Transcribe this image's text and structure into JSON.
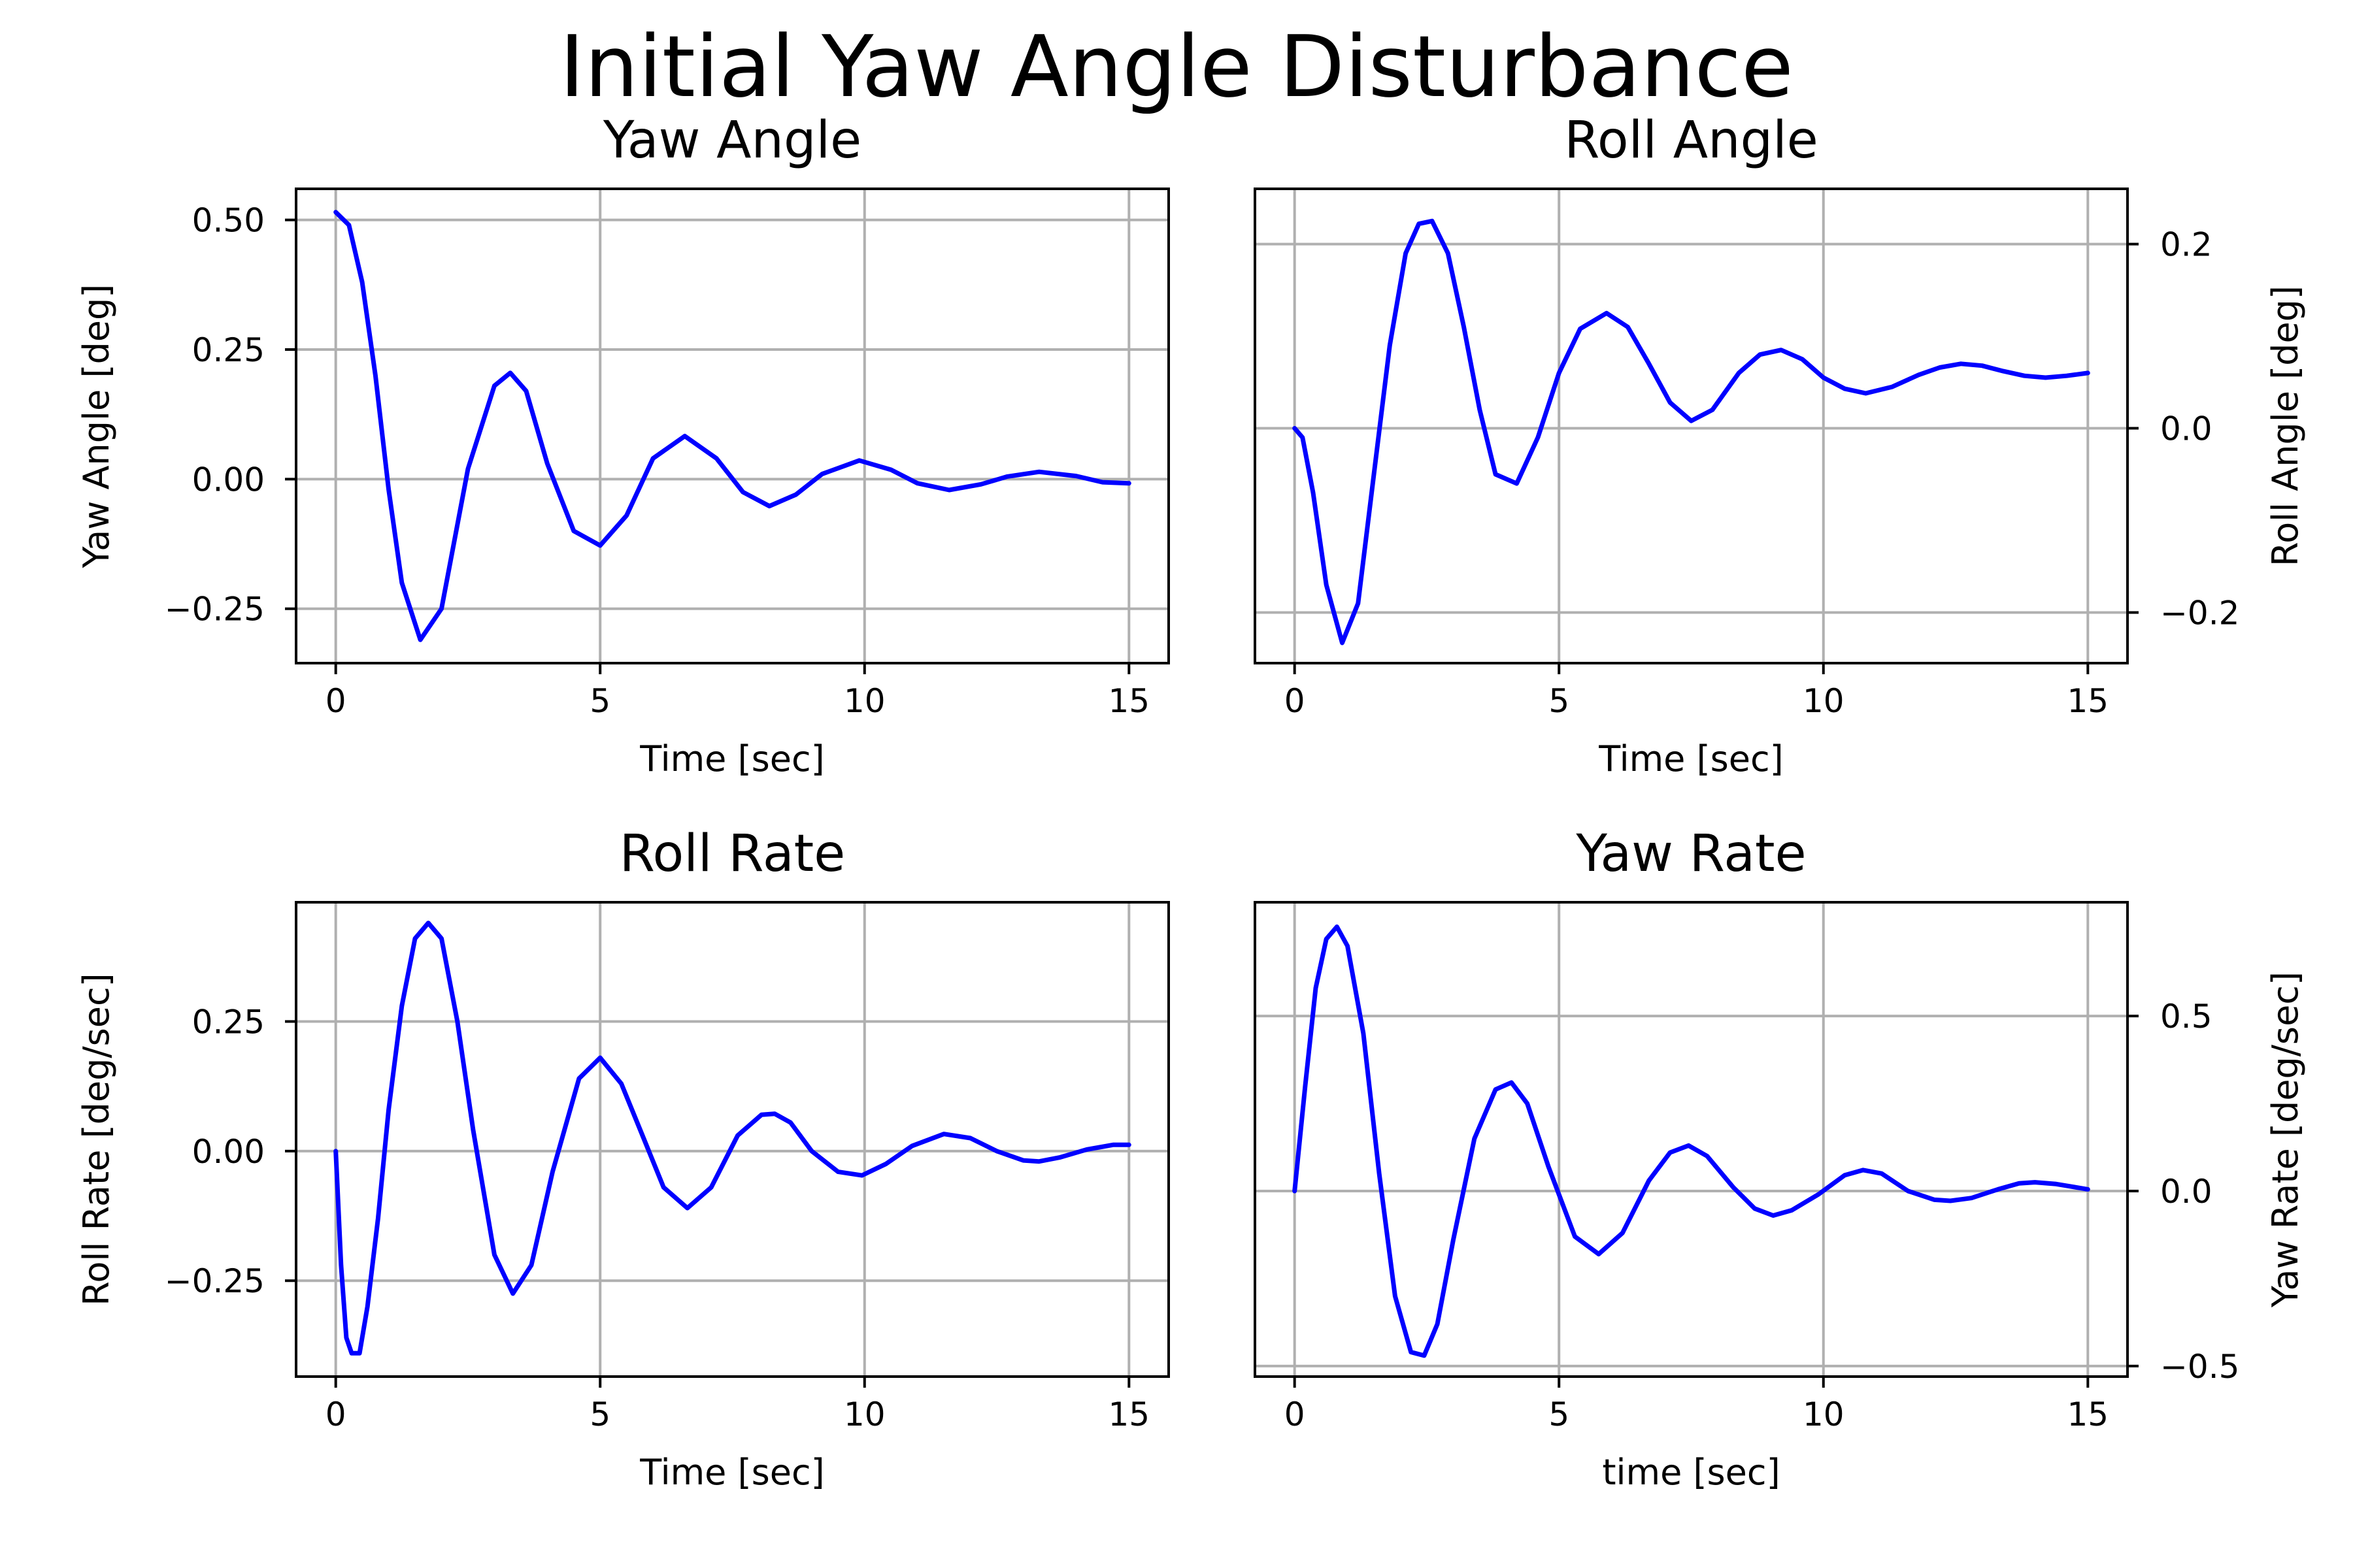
{
  "figure_title": "Initial Yaw Angle Disturbance",
  "chart_data": [
    {
      "type": "line",
      "title": "Yaw Angle",
      "xlabel": "Time [sec]",
      "ylabel": "Yaw Angle [deg]",
      "ylabel_side": "left",
      "xlim": [
        -0.75,
        15.75
      ],
      "ylim": [
        -0.355,
        0.56
      ],
      "xticks": [
        0,
        5,
        10,
        15
      ],
      "xtick_labels": [
        "0",
        "5",
        "10",
        "15"
      ],
      "yticks": [
        -0.25,
        0,
        0.25,
        0.5
      ],
      "ytick_labels": [
        "−0.25",
        "0.00",
        "0.25",
        "0.50"
      ],
      "grid": true,
      "series": [
        {
          "color": "#0000ff",
          "x": [
            0,
            0.25,
            0.5,
            0.75,
            1.0,
            1.25,
            1.6,
            2.0,
            2.5,
            3.0,
            3.3,
            3.6,
            4.0,
            4.5,
            5.0,
            5.5,
            6.0,
            6.6,
            7.2,
            7.7,
            8.2,
            8.7,
            9.2,
            9.9,
            10.5,
            11.0,
            11.6,
            12.2,
            12.7,
            13.3,
            14.0,
            14.5,
            15.0
          ],
          "y": [
            0.515,
            0.49,
            0.38,
            0.2,
            -0.02,
            -0.2,
            -0.31,
            -0.25,
            0.02,
            0.18,
            0.205,
            0.17,
            0.03,
            -0.1,
            -0.128,
            -0.07,
            0.04,
            0.083,
            0.04,
            -0.025,
            -0.052,
            -0.03,
            0.01,
            0.036,
            0.018,
            -0.008,
            -0.021,
            -0.01,
            0.005,
            0.014,
            0.006,
            -0.006,
            -0.008
          ]
        }
      ]
    },
    {
      "type": "line",
      "title": "Roll Angle",
      "xlabel": "Time [sec]",
      "ylabel": "Roll Angle [deg]",
      "ylabel_side": "right",
      "xlim": [
        -0.75,
        15.75
      ],
      "ylim": [
        -0.255,
        0.26
      ],
      "xticks": [
        0,
        5,
        10,
        15
      ],
      "xtick_labels": [
        "0",
        "5",
        "10",
        "15"
      ],
      "yticks": [
        -0.2,
        0,
        0.2
      ],
      "ytick_labels": [
        "−0.2",
        "0.0",
        "0.2"
      ],
      "grid": true,
      "series": [
        {
          "color": "#0000ff",
          "x": [
            0,
            0.15,
            0.35,
            0.6,
            0.9,
            1.2,
            1.5,
            1.8,
            2.1,
            2.35,
            2.6,
            2.9,
            3.2,
            3.5,
            3.8,
            4.2,
            4.6,
            5.0,
            5.4,
            5.9,
            6.3,
            6.7,
            7.1,
            7.5,
            7.9,
            8.4,
            8.8,
            9.2,
            9.6,
            10.0,
            10.4,
            10.8,
            11.3,
            11.8,
            12.2,
            12.6,
            13.0,
            13.4,
            13.8,
            14.2,
            14.6,
            15.0
          ],
          "y": [
            0.0,
            -0.01,
            -0.07,
            -0.17,
            -0.233,
            -0.19,
            -0.05,
            0.09,
            0.19,
            0.222,
            0.225,
            0.19,
            0.11,
            0.02,
            -0.05,
            -0.06,
            -0.01,
            0.06,
            0.108,
            0.125,
            0.11,
            0.07,
            0.028,
            0.008,
            0.02,
            0.06,
            0.08,
            0.085,
            0.075,
            0.055,
            0.043,
            0.038,
            0.045,
            0.058,
            0.066,
            0.07,
            0.068,
            0.062,
            0.057,
            0.055,
            0.057,
            0.06
          ]
        }
      ]
    },
    {
      "type": "line",
      "title": "Roll Rate",
      "xlabel": "Time [sec]",
      "ylabel": "Roll Rate [deg/sec]",
      "ylabel_side": "left",
      "xlim": [
        -0.75,
        15.75
      ],
      "ylim": [
        -0.435,
        0.48
      ],
      "xticks": [
        0,
        5,
        10,
        15
      ],
      "xtick_labels": [
        "0",
        "5",
        "10",
        "15"
      ],
      "yticks": [
        -0.25,
        0,
        0.25
      ],
      "ytick_labels": [
        "−0.25",
        "0.00",
        "0.25"
      ],
      "grid": true,
      "series": [
        {
          "color": "#0000ff",
          "x": [
            0,
            0.1,
            0.2,
            0.3,
            0.45,
            0.6,
            0.8,
            1.0,
            1.25,
            1.5,
            1.75,
            2.0,
            2.3,
            2.6,
            3.0,
            3.35,
            3.7,
            4.1,
            4.6,
            5.0,
            5.4,
            5.8,
            6.2,
            6.65,
            7.1,
            7.6,
            8.05,
            8.3,
            8.6,
            9.0,
            9.5,
            9.95,
            10.4,
            10.9,
            11.5,
            12.0,
            12.5,
            13.0,
            13.3,
            13.7,
            14.2,
            14.7,
            15.0
          ],
          "y": [
            0,
            -0.22,
            -0.36,
            -0.39,
            -0.39,
            -0.3,
            -0.13,
            0.08,
            0.28,
            0.41,
            0.44,
            0.41,
            0.25,
            0.04,
            -0.2,
            -0.275,
            -0.22,
            -0.04,
            0.14,
            0.18,
            0.13,
            0.03,
            -0.07,
            -0.11,
            -0.07,
            0.03,
            0.07,
            0.072,
            0.055,
            0.0,
            -0.04,
            -0.047,
            -0.025,
            0.01,
            0.033,
            0.025,
            0.0,
            -0.018,
            -0.02,
            -0.012,
            0.003,
            0.012,
            0.012
          ]
        }
      ]
    },
    {
      "type": "line",
      "title": "Yaw Rate",
      "xlabel": "time [sec]",
      "ylabel": "Yaw Rate [deg/sec]",
      "ylabel_side": "right",
      "xlim": [
        -0.75,
        15.75
      ],
      "ylim": [
        -0.53,
        0.825
      ],
      "xticks": [
        0,
        5,
        10,
        15
      ],
      "xtick_labels": [
        "0",
        "5",
        "10",
        "15"
      ],
      "yticks": [
        -0.5,
        0,
        0.5
      ],
      "ytick_labels": [
        "−0.5",
        "0.0",
        "0.5"
      ],
      "grid": true,
      "series": [
        {
          "color": "#0000ff",
          "x": [
            0,
            0.2,
            0.4,
            0.6,
            0.8,
            1.0,
            1.3,
            1.6,
            1.9,
            2.2,
            2.45,
            2.7,
            3.0,
            3.4,
            3.8,
            4.1,
            4.4,
            4.8,
            5.3,
            5.75,
            6.2,
            6.7,
            7.1,
            7.45,
            7.8,
            8.3,
            8.7,
            9.05,
            9.4,
            9.9,
            10.4,
            10.75,
            11.1,
            11.6,
            12.1,
            12.4,
            12.8,
            13.3,
            13.7,
            14.0,
            14.4,
            14.8,
            15.0
          ],
          "y": [
            0,
            0.3,
            0.58,
            0.72,
            0.755,
            0.7,
            0.45,
            0.05,
            -0.3,
            -0.46,
            -0.47,
            -0.38,
            -0.14,
            0.15,
            0.29,
            0.31,
            0.25,
            0.07,
            -0.13,
            -0.18,
            -0.12,
            0.03,
            0.11,
            0.13,
            0.1,
            0.01,
            -0.05,
            -0.07,
            -0.055,
            -0.01,
            0.045,
            0.06,
            0.05,
            0.0,
            -0.025,
            -0.028,
            -0.02,
            0.005,
            0.022,
            0.025,
            0.02,
            0.01,
            0.005
          ]
        }
      ]
    }
  ]
}
